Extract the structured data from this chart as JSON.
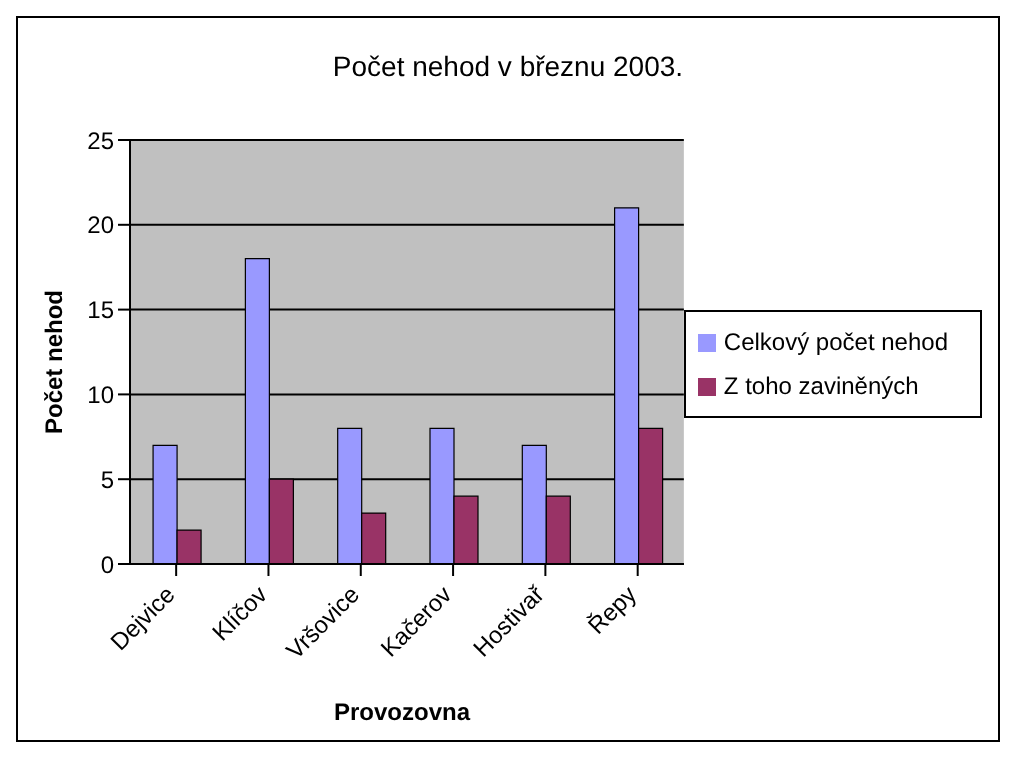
{
  "chart_data": {
    "type": "bar",
    "title": "Počet nehod v březnu 2003.",
    "xlabel": "Provozovna",
    "ylabel": "Počet nehod",
    "categories": [
      "Dejvice",
      "Klíčov",
      "Vršovice",
      "Kačerov",
      "Hostivař",
      "Řepy"
    ],
    "series": [
      {
        "name": "Celkový počet nehod",
        "color": "#9999ff",
        "values": [
          7,
          18,
          8,
          8,
          7,
          21
        ]
      },
      {
        "name": "Z toho zaviněných",
        "color": "#993366",
        "values": [
          2,
          5,
          3,
          4,
          4,
          8
        ]
      }
    ],
    "ylim": [
      0,
      25
    ],
    "yticks": [
      0,
      5,
      10,
      15,
      20,
      25
    ],
    "grid": "y",
    "legend": "right"
  }
}
